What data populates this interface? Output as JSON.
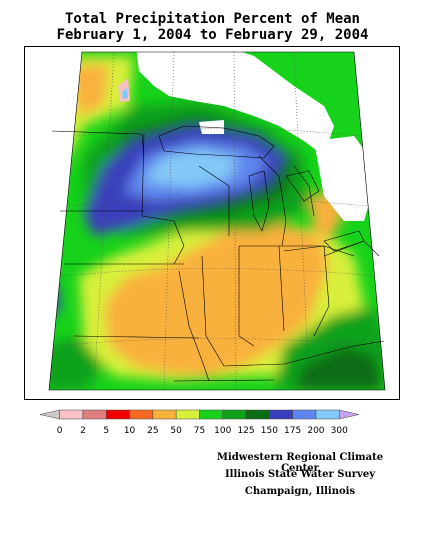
{
  "title": {
    "line1": "Total Precipitation Percent of Mean",
    "line2": "February 1, 2004 to February 29, 2004"
  },
  "legend": {
    "labels": [
      "0",
      "2",
      "5",
      "10",
      "25",
      "50",
      "75",
      "100",
      "125",
      "150",
      "175",
      "200",
      "300"
    ],
    "colors": [
      "#c9c9c9",
      "#f7c1c5",
      "#e07f7f",
      "#f20000",
      "#f76a1f",
      "#f9b13d",
      "#d8f03a",
      "#16d21a",
      "#10a11c",
      "#0b6c12",
      "#3b3fbb",
      "#5f86ee",
      "#83c9f8",
      "#c9a3ef"
    ]
  },
  "regions": {
    "colors": {
      "deficit": "#f9b13d",
      "low": "#d8f03a",
      "near_normal": "#16d21a",
      "above": "#10a11c",
      "high": "#0b6c12",
      "very_high": "#3b3fbb",
      "wet": "#5f86ee",
      "very_wet": "#83c9f8",
      "no_data": "#ffffff"
    }
  },
  "credits": {
    "line1": "Midwestern Regional Climate Center",
    "line2": "Illinois State Water Survey",
    "line3": "Champaign, Illinois"
  }
}
